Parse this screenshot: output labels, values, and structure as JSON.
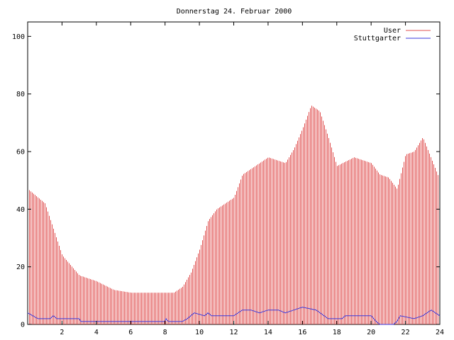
{
  "chart_data": {
    "type": "bar",
    "title": "Donnerstag 24. Februar 2000",
    "xlabel": "",
    "ylabel": "",
    "xlim": [
      0,
      24
    ],
    "ylim": [
      0,
      105
    ],
    "xticks": [
      2,
      4,
      6,
      8,
      10,
      12,
      14,
      16,
      18,
      20,
      22,
      24
    ],
    "yticks": [
      0,
      20,
      40,
      60,
      80,
      100
    ],
    "legend_position": "top-right",
    "colors": {
      "User": "#e05050",
      "Stuttgarter": "#3a3adc"
    },
    "series": [
      {
        "name": "User",
        "style": "impulses",
        "x": [
          0,
          1,
          2,
          3,
          4,
          5,
          6,
          7,
          8,
          8.5,
          9,
          9.5,
          10,
          10.5,
          11,
          12,
          12.5,
          13,
          14,
          15,
          15.5,
          16,
          16.5,
          17,
          17.5,
          18,
          19,
          20,
          20.5,
          21,
          21.5,
          22,
          22.5,
          23,
          24
        ],
        "y": [
          47,
          42,
          24,
          17,
          15,
          12,
          11,
          11,
          11,
          11,
          13,
          18,
          26,
          36,
          40,
          44,
          52,
          54,
          58,
          56,
          61,
          68,
          76,
          74,
          65,
          55,
          58,
          56,
          52,
          51,
          47,
          59,
          60,
          65,
          50
        ]
      },
      {
        "name": "Stuttgarter",
        "style": "line",
        "x": [
          0,
          0.3,
          0.6,
          1.3,
          1.5,
          1.7,
          2,
          3,
          3.1,
          4,
          6,
          8,
          8.05,
          8.2,
          9,
          9.3,
          9.7,
          10.3,
          10.5,
          10.7,
          12,
          12.5,
          13,
          13.5,
          14,
          14.6,
          15,
          15.5,
          16,
          16.8,
          17.5,
          18.3,
          18.5,
          18.7,
          20,
          20.3,
          20.5,
          21.3,
          21.5,
          21.7,
          22.5,
          23,
          23.5,
          24
        ],
        "y": [
          4,
          3,
          2,
          2,
          3,
          2,
          2,
          2,
          1,
          1,
          1,
          1,
          2,
          1,
          1,
          2,
          4,
          3,
          4,
          3,
          3,
          5,
          5,
          4,
          5,
          5,
          4,
          5,
          6,
          5,
          2,
          2,
          3,
          3,
          3,
          1,
          0,
          0,
          1,
          3,
          2,
          3,
          5,
          3
        ]
      }
    ]
  }
}
